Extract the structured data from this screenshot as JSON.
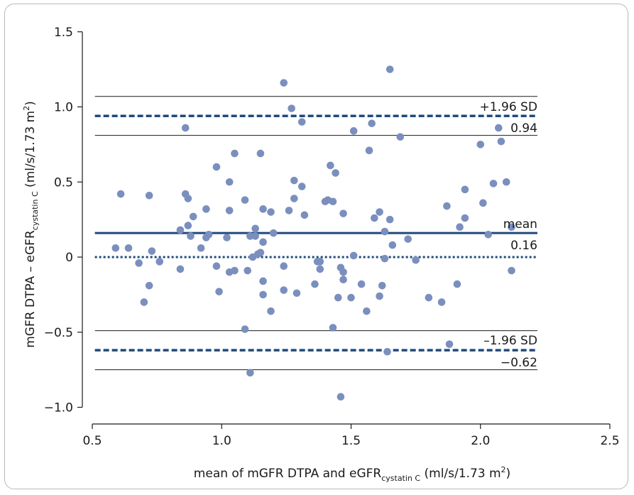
{
  "chart_data": {
    "type": "scatter",
    "title": "",
    "xlabel": {
      "main": "mean of mGFR DTPA and eGFR",
      "sub": "cystatin C",
      "unit_pre": " (ml/s/1.73 m",
      "unit_sup": "2",
      "unit_post": ")"
    },
    "ylabel": {
      "main": "mGFR DTPA – eGFR",
      "sub": "cystatin C",
      "unit_pre": " (ml/s/1.73 m",
      "unit_sup": "2",
      "unit_post": ")"
    },
    "xlim": [
      0.5,
      2.5
    ],
    "ylim": [
      -1.08,
      1.5
    ],
    "x_ticks": [
      0.5,
      1.0,
      1.5,
      2.0,
      2.5
    ],
    "x_tick_labels": [
      "0.5",
      "1.0",
      "1.5",
      "2.0",
      "2.5"
    ],
    "y_ticks": [
      -1.0,
      -0.5,
      0,
      0.5,
      1.0,
      1.5
    ],
    "y_tick_labels": [
      "−1.0",
      "−0.5",
      "0",
      "0.5",
      "1.0",
      "1.5"
    ],
    "grid": false,
    "colors": {
      "points": "#7b8fbe",
      "limits": "#1f4a7a",
      "ci": "#1a1a1a",
      "zero": "#1f4a7a"
    },
    "lines": {
      "mean": {
        "y": 0.16,
        "label": "mean",
        "value_label": "0.16"
      },
      "upper": {
        "y": 0.94,
        "label": "+1.96 SD",
        "value_label": "0.94",
        "ci": [
          0.81,
          1.07
        ]
      },
      "lower": {
        "y": -0.62,
        "label": "–1.96 SD",
        "value_label": "−0.62",
        "ci": [
          -0.75,
          -0.49
        ]
      },
      "zero": {
        "y": 0
      },
      "x_extent": [
        0.51,
        2.22
      ]
    },
    "points": [
      [
        0.59,
        0.06
      ],
      [
        0.61,
        0.42
      ],
      [
        0.64,
        0.06
      ],
      [
        0.68,
        -0.04
      ],
      [
        0.7,
        -0.3
      ],
      [
        0.72,
        0.41
      ],
      [
        0.72,
        -0.19
      ],
      [
        0.73,
        0.04
      ],
      [
        0.76,
        -0.03
      ],
      [
        0.84,
        0.18
      ],
      [
        0.84,
        -0.08
      ],
      [
        0.86,
        0.86
      ],
      [
        0.86,
        0.42
      ],
      [
        0.87,
        0.39
      ],
      [
        0.87,
        0.21
      ],
      [
        0.88,
        0.14
      ],
      [
        0.89,
        0.27
      ],
      [
        0.92,
        0.06
      ],
      [
        0.94,
        0.32
      ],
      [
        0.94,
        0.13
      ],
      [
        0.95,
        0.15
      ],
      [
        0.98,
        0.6
      ],
      [
        0.98,
        -0.06
      ],
      [
        0.99,
        -0.23
      ],
      [
        1.02,
        0.13
      ],
      [
        1.03,
        0.31
      ],
      [
        1.03,
        0.5
      ],
      [
        1.03,
        -0.1
      ],
      [
        1.05,
        0.69
      ],
      [
        1.05,
        -0.09
      ],
      [
        1.09,
        0.38
      ],
      [
        1.09,
        -0.48
      ],
      [
        1.1,
        -0.09
      ],
      [
        1.11,
        0.14
      ],
      [
        1.11,
        -0.77
      ],
      [
        1.12,
        0.0
      ],
      [
        1.13,
        0.19
      ],
      [
        1.13,
        0.14
      ],
      [
        1.14,
        0.02
      ],
      [
        1.15,
        0.69
      ],
      [
        1.15,
        0.03
      ],
      [
        1.16,
        0.32
      ],
      [
        1.16,
        0.1
      ],
      [
        1.16,
        -0.16
      ],
      [
        1.16,
        -0.25
      ],
      [
        1.19,
        0.3
      ],
      [
        1.19,
        -0.36
      ],
      [
        1.2,
        0.16
      ],
      [
        1.24,
        1.16
      ],
      [
        1.24,
        -0.06
      ],
      [
        1.24,
        -0.22
      ],
      [
        1.26,
        0.31
      ],
      [
        1.27,
        0.99
      ],
      [
        1.28,
        0.51
      ],
      [
        1.28,
        0.39
      ],
      [
        1.29,
        -0.24
      ],
      [
        1.31,
        0.9
      ],
      [
        1.31,
        0.47
      ],
      [
        1.32,
        0.28
      ],
      [
        1.36,
        -0.18
      ],
      [
        1.37,
        -0.03
      ],
      [
        1.38,
        -0.03
      ],
      [
        1.38,
        -0.08
      ],
      [
        1.4,
        0.37
      ],
      [
        1.41,
        0.38
      ],
      [
        1.42,
        0.61
      ],
      [
        1.43,
        0.37
      ],
      [
        1.43,
        -0.47
      ],
      [
        1.44,
        0.56
      ],
      [
        1.45,
        -0.27
      ],
      [
        1.46,
        -0.93
      ],
      [
        1.46,
        -0.07
      ],
      [
        1.47,
        -0.1
      ],
      [
        1.47,
        0.29
      ],
      [
        1.47,
        -0.15
      ],
      [
        1.5,
        -0.27
      ],
      [
        1.51,
        0.84
      ],
      [
        1.51,
        0.01
      ],
      [
        1.54,
        -0.18
      ],
      [
        1.56,
        -0.36
      ],
      [
        1.57,
        0.71
      ],
      [
        1.58,
        0.89
      ],
      [
        1.59,
        0.26
      ],
      [
        1.61,
        0.3
      ],
      [
        1.61,
        -0.26
      ],
      [
        1.62,
        -0.19
      ],
      [
        1.63,
        0.17
      ],
      [
        1.63,
        -0.01
      ],
      [
        1.64,
        -0.63
      ],
      [
        1.65,
        1.25
      ],
      [
        1.65,
        0.25
      ],
      [
        1.66,
        0.08
      ],
      [
        1.69,
        0.8
      ],
      [
        1.72,
        0.12
      ],
      [
        1.75,
        -0.02
      ],
      [
        1.8,
        -0.27
      ],
      [
        1.85,
        -0.3
      ],
      [
        1.87,
        0.34
      ],
      [
        1.88,
        -0.58
      ],
      [
        1.91,
        -0.18
      ],
      [
        1.92,
        0.2
      ],
      [
        1.94,
        0.26
      ],
      [
        1.94,
        0.45
      ],
      [
        2.0,
        0.75
      ],
      [
        2.01,
        0.36
      ],
      [
        2.03,
        0.15
      ],
      [
        2.05,
        0.49
      ],
      [
        2.07,
        0.86
      ],
      [
        2.08,
        0.77
      ],
      [
        2.1,
        0.5
      ],
      [
        2.12,
        0.2
      ],
      [
        2.12,
        -0.09
      ]
    ]
  }
}
